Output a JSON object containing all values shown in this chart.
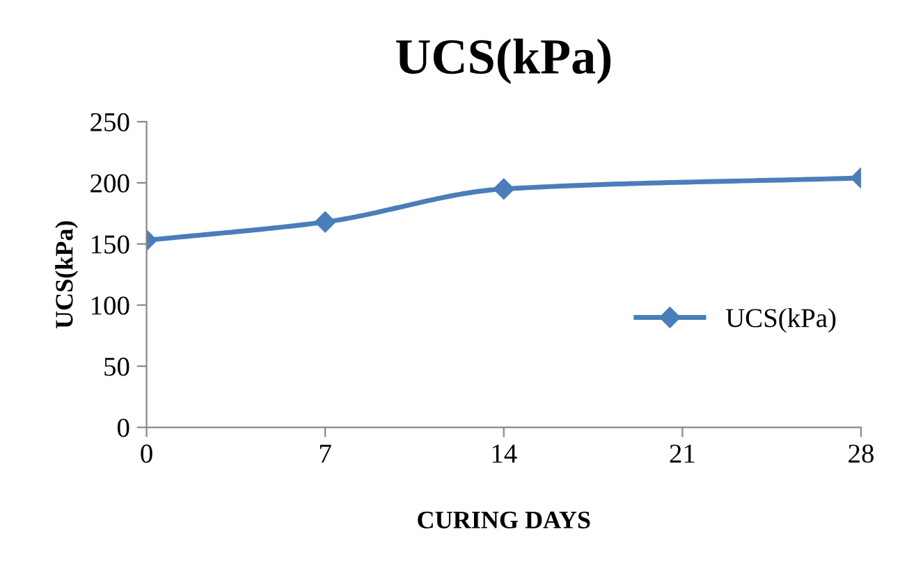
{
  "chart_data": {
    "type": "line",
    "title": "UCS(kPa)",
    "xlabel": "CURING DAYS",
    "ylabel": "UCS(kPa)",
    "x": [
      0,
      7,
      14,
      28
    ],
    "series": [
      {
        "name": "UCS(kPa)",
        "color": "#4a7ebb",
        "values": [
          153,
          168,
          195,
          204
        ]
      }
    ],
    "xlim": [
      0,
      28
    ],
    "xticks": [
      0,
      7,
      14,
      21,
      28
    ],
    "ylim": [
      0,
      250
    ],
    "yticks": [
      0,
      50,
      100,
      150,
      200,
      250
    ],
    "grid": false,
    "legend": "right",
    "marker": "diamond",
    "line_style": "solid"
  }
}
